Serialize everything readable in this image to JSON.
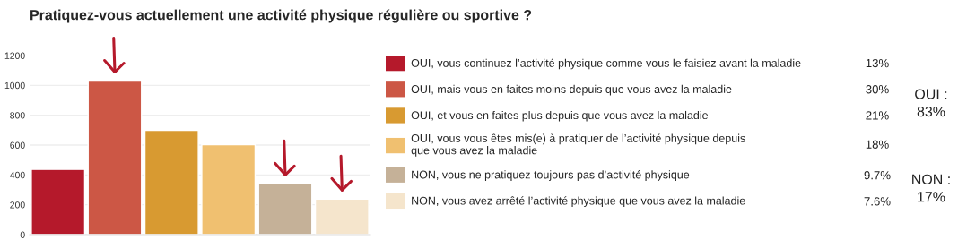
{
  "chart_data": {
    "type": "bar",
    "title": "Pratiquez-vous actuellement une activité physique régulière ou sportive ?",
    "categories": [
      null,
      null,
      null,
      null,
      null,
      null
    ],
    "series": [
      {
        "name": "OUI, vous continuez l’activité physique comme vous le faisiez avant la maladie",
        "color": "#b5192b",
        "values": [
          437,
          null,
          null,
          null,
          null,
          null
        ]
      },
      {
        "name": "OUI, mais vous en faites moins depuis que vous avez la maladie",
        "color": "#cc5745",
        "values": [
          null,
          1029,
          null,
          null,
          null,
          null
        ]
      },
      {
        "name": "OUI, et vous en faites plus depuis que vous avez la maladie",
        "color": "#d89a31",
        "values": [
          null,
          null,
          699,
          null,
          null,
          null
        ]
      },
      {
        "name": "OUI, vous vous êtes mis(e) à pratiquer de l’activité physique depuis\nque vous avez la maladie",
        "color": "#f0c070",
        "values": [
          null,
          null,
          null,
          603,
          null,
          null
        ]
      },
      {
        "name": "NON, vous ne pratiquez toujours pas d’activité physique",
        "color": "#c5b198",
        "values": [
          null,
          null,
          null,
          null,
          340,
          null
        ]
      },
      {
        "name": "NON, vous avez arrêté l’activité physique que vous avez la maladie",
        "color": "#f5e5cc",
        "values": [
          null,
          null,
          null,
          null,
          null,
          238
        ]
      }
    ],
    "ylim": [
      0,
      1200
    ],
    "yticks": [
      0,
      200,
      400,
      600,
      800,
      1000,
      1200
    ],
    "grid": "y",
    "legend": "right",
    "tick_labels": "y",
    "annotations": [
      "13%",
      "30%",
      "21%",
      "18%",
      "9.7%",
      "7.6%",
      "OUI :\n83%",
      "NON :\n17%"
    ]
  }
}
